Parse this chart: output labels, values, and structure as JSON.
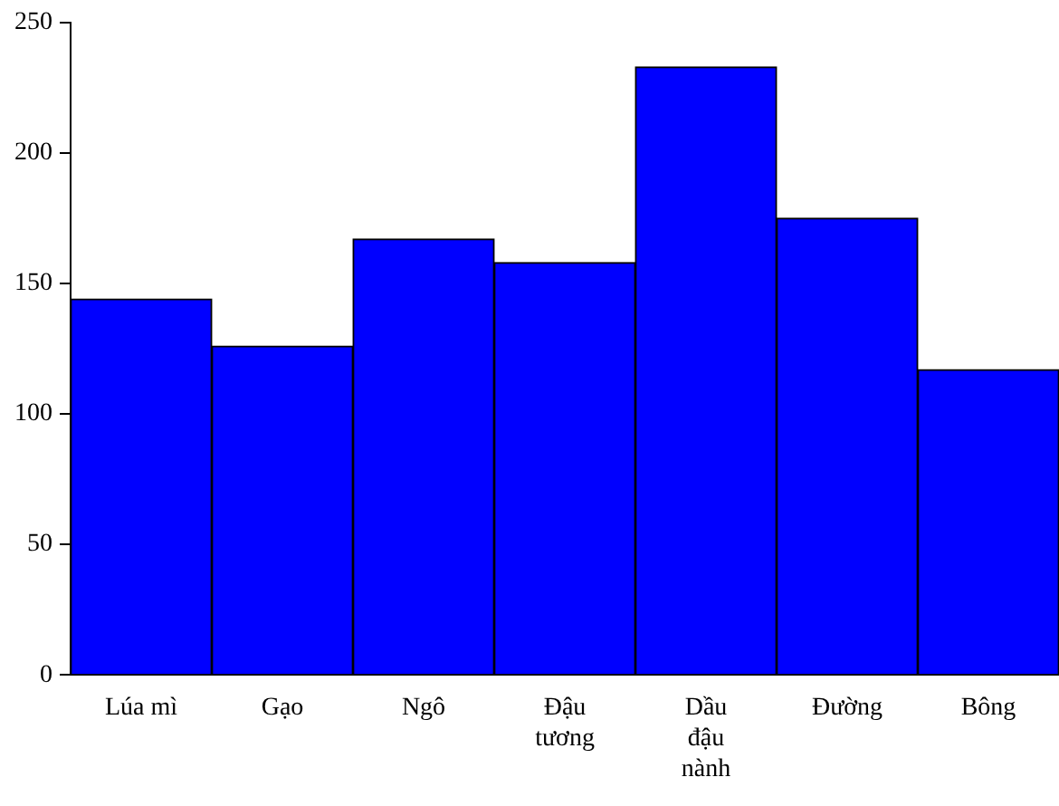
{
  "chart_data": {
    "type": "bar",
    "categories": [
      "Lúa mì",
      "Gạo",
      "Ngô",
      "Đậu tương",
      "Dầu đậu nành",
      "Đường",
      "Bông"
    ],
    "values": [
      144,
      126,
      167,
      158,
      233,
      175,
      117
    ],
    "color": "#0000ff",
    "ylim": [
      0,
      250
    ],
    "yticks": [
      0,
      50,
      100,
      150,
      200,
      250
    ],
    "grid": false
  }
}
